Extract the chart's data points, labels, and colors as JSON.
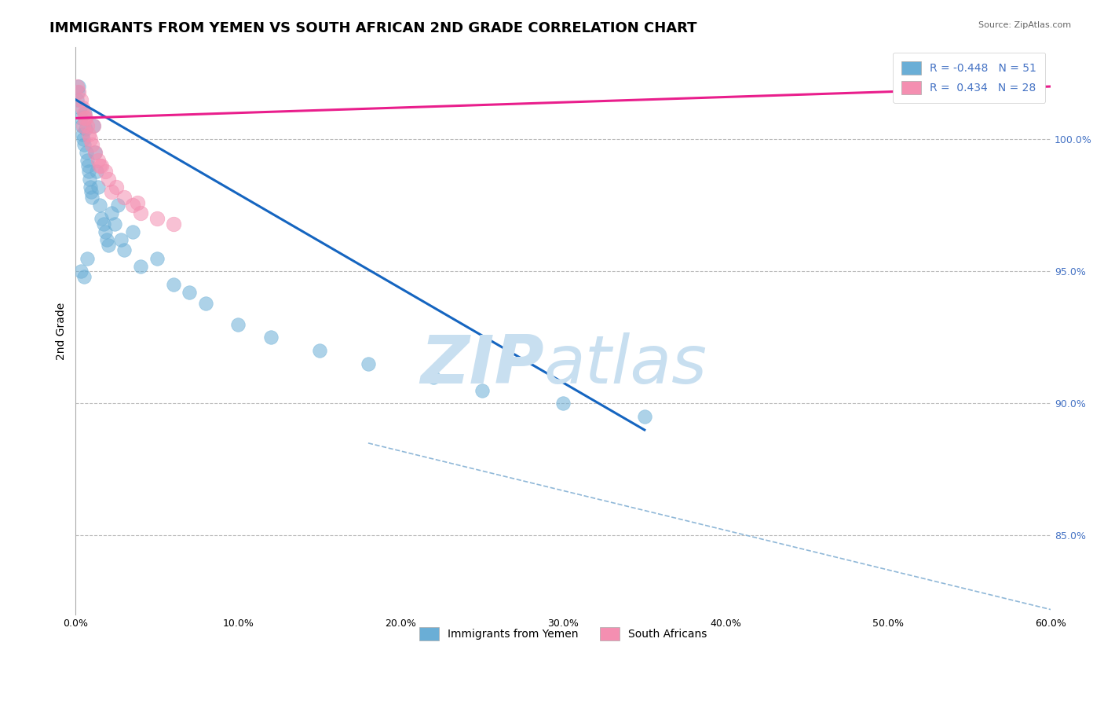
{
  "title": "IMMIGRANTS FROM YEMEN VS SOUTH AFRICAN 2ND GRADE CORRELATION CHART",
  "source": "Source: ZipAtlas.com",
  "ylabel": "2nd Grade",
  "x_tick_vals": [
    0.0,
    10.0,
    20.0,
    30.0,
    40.0,
    50.0,
    60.0
  ],
  "y_tick_vals_right": [
    85.0,
    90.0,
    95.0,
    100.0
  ],
  "xlim": [
    0.0,
    60.0
  ],
  "ylim": [
    82.0,
    103.5
  ],
  "blue_scatter_x": [
    0.1,
    0.15,
    0.2,
    0.25,
    0.3,
    0.35,
    0.4,
    0.45,
    0.5,
    0.55,
    0.6,
    0.65,
    0.7,
    0.75,
    0.8,
    0.85,
    0.9,
    0.95,
    1.0,
    1.1,
    1.2,
    1.3,
    1.4,
    1.5,
    1.6,
    1.7,
    1.8,
    1.9,
    2.0,
    2.2,
    2.4,
    2.6,
    2.8,
    3.0,
    3.5,
    4.0,
    5.0,
    6.0,
    7.0,
    8.0,
    10.0,
    12.0,
    15.0,
    18.0,
    22.0,
    25.0,
    30.0,
    35.0,
    0.3,
    0.5,
    0.7
  ],
  "blue_scatter_y": [
    101.5,
    101.8,
    102.0,
    101.2,
    100.8,
    100.5,
    100.2,
    100.0,
    99.8,
    101.0,
    100.4,
    99.5,
    99.2,
    99.0,
    98.8,
    98.5,
    98.2,
    98.0,
    97.8,
    100.5,
    99.5,
    98.8,
    98.2,
    97.5,
    97.0,
    96.8,
    96.5,
    96.2,
    96.0,
    97.2,
    96.8,
    97.5,
    96.2,
    95.8,
    96.5,
    95.2,
    95.5,
    94.5,
    94.2,
    93.8,
    93.0,
    92.5,
    92.0,
    91.5,
    91.0,
    90.5,
    90.0,
    89.5,
    95.0,
    94.8,
    95.5
  ],
  "pink_scatter_x": [
    0.1,
    0.2,
    0.3,
    0.4,
    0.5,
    0.6,
    0.7,
    0.8,
    0.9,
    1.0,
    1.1,
    1.2,
    1.4,
    1.6,
    1.8,
    2.0,
    2.5,
    3.0,
    3.5,
    4.0,
    5.0,
    6.0,
    2.2,
    3.8,
    1.5,
    0.55,
    55.0,
    0.45
  ],
  "pink_scatter_y": [
    102.0,
    101.8,
    101.5,
    101.2,
    101.0,
    100.8,
    100.5,
    100.2,
    100.0,
    99.8,
    100.5,
    99.5,
    99.2,
    99.0,
    98.8,
    98.5,
    98.2,
    97.8,
    97.5,
    97.2,
    97.0,
    96.8,
    98.0,
    97.6,
    99.0,
    100.8,
    102.0,
    100.5
  ],
  "blue_line_x": [
    0.0,
    35.0
  ],
  "blue_line_y": [
    101.5,
    89.0
  ],
  "pink_line_x": [
    0.0,
    60.0
  ],
  "pink_line_y": [
    100.8,
    102.0
  ],
  "dashed_line_x": [
    18.0,
    60.0
  ],
  "dashed_line_y": [
    88.5,
    82.2
  ],
  "blue_color": "#6aaed6",
  "pink_color": "#f48fb1",
  "blue_line_color": "#1565c0",
  "pink_line_color": "#e91e8c",
  "dashed_line_color": "#90b8d8",
  "watermark_text": "ZIP",
  "watermark_text2": "atlas",
  "watermark_color": "#c8dff0",
  "grid_color": "#bbbbbb",
  "title_fontsize": 13,
  "axis_label_fontsize": 10,
  "tick_fontsize": 9,
  "legend_fontsize": 10,
  "right_tick_color": "#4472c4"
}
